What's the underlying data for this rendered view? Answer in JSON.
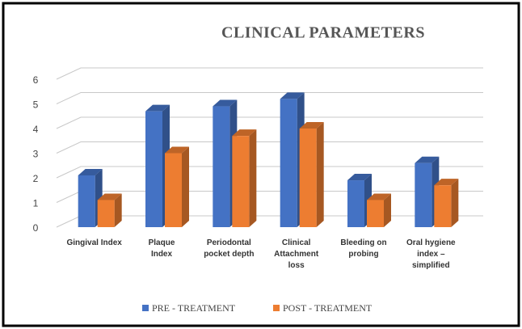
{
  "chart_data": {
    "type": "bar",
    "title": "CLINICAL PARAMETERS",
    "categories": [
      [
        "Gingival Index"
      ],
      [
        "Plaque",
        "Index"
      ],
      [
        "Periodontal",
        "pocket depth"
      ],
      [
        "Clinical",
        "Attachment",
        "loss"
      ],
      [
        "Bleeding on",
        "probing"
      ],
      [
        "Oral hygiene",
        "index –",
        "simplified"
      ]
    ],
    "series": [
      {
        "name": "PRE - TREATMENT",
        "color": "#4472c4",
        "values": [
          2.1,
          4.7,
          4.9,
          5.2,
          1.9,
          2.6
        ]
      },
      {
        "name": "POST - TREATMENT",
        "color": "#ed7d31",
        "values": [
          1.1,
          3.0,
          3.7,
          4.0,
          1.1,
          1.7
        ]
      }
    ],
    "ylim": [
      0,
      6
    ],
    "yticks": [
      0,
      1,
      2,
      3,
      4,
      5,
      6
    ],
    "grid": true,
    "legend": "bottom"
  }
}
